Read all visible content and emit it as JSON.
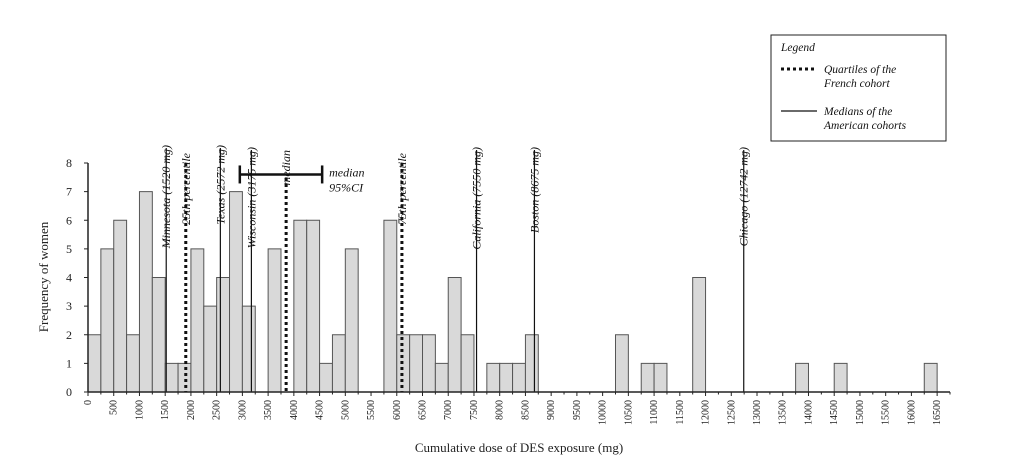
{
  "chart_data": {
    "type": "bar",
    "xlabel": "Cumulative dose of DES exposure (mg)",
    "ylabel": "Frequency of women",
    "ylim": [
      0,
      8
    ],
    "yticks": [
      "0",
      "1",
      "2",
      "3",
      "4",
      "5",
      "6",
      "7",
      "8"
    ],
    "xlim": [
      0,
      16750
    ],
    "xticks": [
      "0",
      "500",
      "1000",
      "1500",
      "2000",
      "2500",
      "3000",
      "3500",
      "4000",
      "4500",
      "5000",
      "5500",
      "6000",
      "6500",
      "7000",
      "7500",
      "8000",
      "8500",
      "9000",
      "9500",
      "10000",
      "10500",
      "11000",
      "11500",
      "12000",
      "12500",
      "13000",
      "13500",
      "14000",
      "14500",
      "15000",
      "15500",
      "16000",
      "16500"
    ],
    "bin_width": 250,
    "bins": [
      {
        "x": 0,
        "value": 2
      },
      {
        "x": 250,
        "value": 5
      },
      {
        "x": 500,
        "value": 6
      },
      {
        "x": 750,
        "value": 2
      },
      {
        "x": 1000,
        "value": 7
      },
      {
        "x": 1250,
        "value": 4
      },
      {
        "x": 1500,
        "value": 1
      },
      {
        "x": 1750,
        "value": 1
      },
      {
        "x": 2000,
        "value": 5
      },
      {
        "x": 2250,
        "value": 3
      },
      {
        "x": 2500,
        "value": 4
      },
      {
        "x": 2750,
        "value": 7
      },
      {
        "x": 3000,
        "value": 3
      },
      {
        "x": 3500,
        "value": 5
      },
      {
        "x": 4000,
        "value": 6
      },
      {
        "x": 4250,
        "value": 6
      },
      {
        "x": 4500,
        "value": 1
      },
      {
        "x": 4750,
        "value": 2
      },
      {
        "x": 5000,
        "value": 5
      },
      {
        "x": 5750,
        "value": 6
      },
      {
        "x": 6000,
        "value": 2
      },
      {
        "x": 6250,
        "value": 2
      },
      {
        "x": 6500,
        "value": 2
      },
      {
        "x": 6750,
        "value": 1
      },
      {
        "x": 7000,
        "value": 4
      },
      {
        "x": 7250,
        "value": 2
      },
      {
        "x": 7750,
        "value": 1
      },
      {
        "x": 8000,
        "value": 1
      },
      {
        "x": 8250,
        "value": 1
      },
      {
        "x": 8500,
        "value": 2
      },
      {
        "x": 10250,
        "value": 2
      },
      {
        "x": 10750,
        "value": 1
      },
      {
        "x": 11000,
        "value": 1
      },
      {
        "x": 11750,
        "value": 4
      },
      {
        "x": 13750,
        "value": 1
      },
      {
        "x": 14500,
        "value": 1
      },
      {
        "x": 16250,
        "value": 1
      }
    ],
    "quartile_lines": [
      {
        "label": "25th percentile",
        "x": 1900
      },
      {
        "label": "median",
        "x": 3850
      },
      {
        "label": "75th percentile",
        "x": 6100
      }
    ],
    "median_ci": {
      "label_line1": "median",
      "label_line2": "95%CI",
      "low": 2950,
      "high": 4550,
      "y": 7.6
    },
    "cohort_medians": [
      {
        "label": "Minnesota (1520 mg)",
        "x": 1520
      },
      {
        "label": "Texas (2572 mg)",
        "x": 2572
      },
      {
        "label": "Wisconsin (3175 mg)",
        "x": 3175
      },
      {
        "label": "California (7550 mg)",
        "x": 7550
      },
      {
        "label": "Boston (8675 mg)",
        "x": 8675
      },
      {
        "label": "Chicago (12742 mg)",
        "x": 12742
      }
    ],
    "legend": {
      "title": "Legend",
      "position": "top-right",
      "items": [
        {
          "style": "dotted",
          "line1": "Quartiles of the",
          "line2": "French cohort"
        },
        {
          "style": "solid",
          "line1": "Medians of the",
          "line2": "American cohorts"
        }
      ]
    },
    "colors": {
      "bar_fill": "#d9d9d9",
      "bar_stroke": "#555555",
      "line": "#111111"
    }
  }
}
